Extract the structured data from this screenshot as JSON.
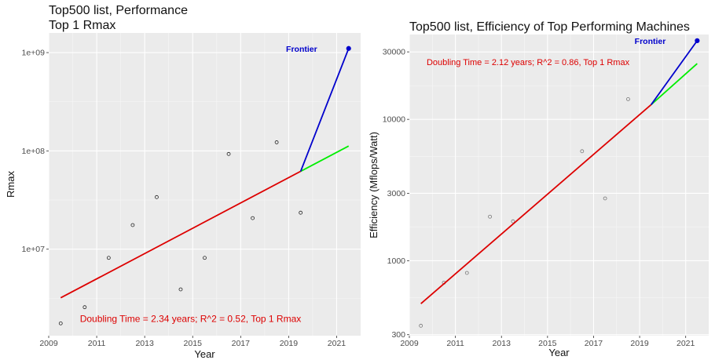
{
  "chart_data": [
    {
      "type": "scatter",
      "title_line1": "Top500 list, Performance",
      "title_line2": "Top 1 Rmax",
      "xlabel": "Year",
      "ylabel": "Rmax",
      "y_scale": "log",
      "xlim": [
        2009.0,
        2022.0
      ],
      "ylim_log10": [
        6.12,
        9.2
      ],
      "xticks": [
        2009,
        2011,
        2013,
        2015,
        2017,
        2019,
        2021
      ],
      "yticks": [
        {
          "value": 10000000,
          "label": "1e+07"
        },
        {
          "value": 100000000,
          "label": "1e+08"
        },
        {
          "value": 1000000000,
          "label": "1e+09"
        }
      ],
      "grid": true,
      "points": [
        {
          "x": 2009.5,
          "y": 1760000
        },
        {
          "x": 2010.5,
          "y": 2570000
        },
        {
          "x": 2011.5,
          "y": 8160000
        },
        {
          "x": 2012.5,
          "y": 17590000
        },
        {
          "x": 2013.5,
          "y": 33860000
        },
        {
          "x": 2014.5,
          "y": 3900000
        },
        {
          "x": 2015.5,
          "y": 8160000
        },
        {
          "x": 2016.5,
          "y": 93010000
        },
        {
          "x": 2017.5,
          "y": 20710000
        },
        {
          "x": 2018.5,
          "y": 122300000
        },
        {
          "x": 2019.5,
          "y": 23500000
        }
      ],
      "highlight_point": {
        "x": 2021.5,
        "y": 1102000000,
        "label": "Frontier",
        "color": "#0000cc"
      },
      "fit_line": {
        "x": [
          2009.5,
          2019.5
        ],
        "y": [
          3200000,
          62000000
        ],
        "color": "#dd0000"
      },
      "projection_line": {
        "x": [
          2019.5,
          2021.5
        ],
        "y": [
          62000000,
          112000000
        ],
        "color": "#00ee00"
      },
      "frontier_line": {
        "x": [
          2019.5,
          2021.5
        ],
        "y": [
          62000000,
          1102000000
        ],
        "color": "#0000cc"
      },
      "annotation": {
        "text": "Doubling Time = 2.34 years; R^2 = 0.52, Top 1 Rmax",
        "x": 2010.3,
        "y": 1950000,
        "color": "#dd0000"
      }
    },
    {
      "type": "scatter",
      "title": "Top500 list, Efficiency of Top Performing Machines",
      "xlabel": "Year",
      "ylabel": "Efficiency  (Mflops/Watt)",
      "y_scale": "log",
      "xlim": [
        2009.0,
        2022.0
      ],
      "ylim_log10": [
        2.47,
        4.6
      ],
      "xticks": [
        2009,
        2011,
        2013,
        2015,
        2017,
        2019,
        2021
      ],
      "yticks": [
        {
          "value": 300,
          "label": "300"
        },
        {
          "value": 1000,
          "label": "1000"
        },
        {
          "value": 3000,
          "label": "3000"
        },
        {
          "value": 10000,
          "label": "10000"
        },
        {
          "value": 30000,
          "label": "30000"
        }
      ],
      "grid": true,
      "points": [
        {
          "x": 2009.5,
          "y": 347
        },
        {
          "x": 2010.5,
          "y": 700
        },
        {
          "x": 2011.5,
          "y": 820
        },
        {
          "x": 2012.5,
          "y": 2050
        },
        {
          "x": 2013.5,
          "y": 1900
        },
        {
          "x": 2016.5,
          "y": 5950
        },
        {
          "x": 2017.5,
          "y": 2760
        },
        {
          "x": 2018.5,
          "y": 13900
        }
      ],
      "highlight_point": {
        "x": 2021.5,
        "y": 36000,
        "label": "Frontier",
        "color": "#0000cc"
      },
      "fit_line": {
        "x": [
          2009.5,
          2019.5
        ],
        "y": [
          497,
          12700
        ],
        "color": "#dd0000"
      },
      "projection_line": {
        "x": [
          2019.5,
          2021.5
        ],
        "y": [
          12700,
          24800
        ],
        "color": "#00ee00"
      },
      "frontier_line": {
        "x": [
          2019.5,
          2021.5
        ],
        "y": [
          12700,
          36000
        ],
        "color": "#0000cc"
      },
      "annotation": {
        "text": "Doubling Time = 2.12 years; R^2 = 0.86, Top 1 Rmax",
        "x": 2009.75,
        "y": 25400,
        "color": "#dd0000"
      }
    }
  ]
}
